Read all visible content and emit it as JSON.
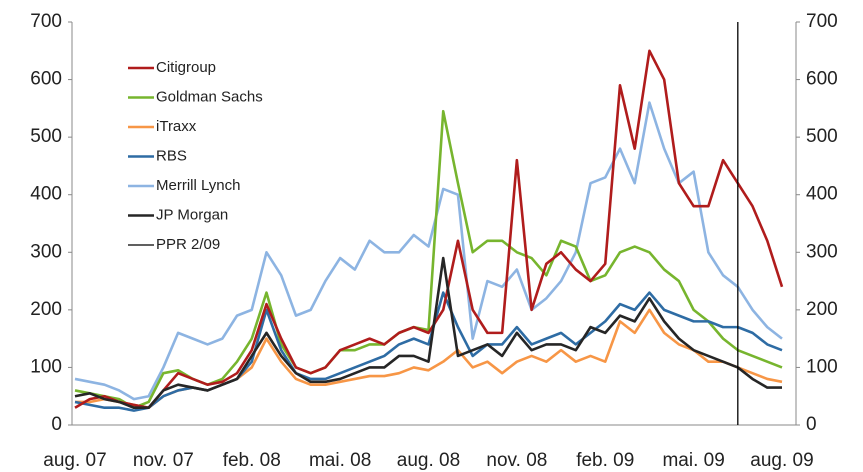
{
  "chart_data": {
    "type": "line",
    "categories": [
      "aug. 07",
      null,
      null,
      null,
      null,
      null,
      "nov. 07",
      null,
      null,
      null,
      null,
      null,
      "feb. 08",
      null,
      null,
      null,
      null,
      null,
      "mai. 08",
      null,
      null,
      null,
      null,
      null,
      "aug. 08",
      null,
      null,
      null,
      null,
      null,
      "nov. 08",
      null,
      null,
      null,
      null,
      null,
      "feb. 09",
      null,
      null,
      null,
      null,
      null,
      "mai. 09",
      null,
      null,
      null,
      null,
      null,
      "aug. 09"
    ],
    "series": [
      {
        "name": "Merrill Lynch",
        "color": "#8db4e2",
        "values": [
          80,
          75,
          70,
          60,
          45,
          50,
          100,
          160,
          150,
          140,
          150,
          190,
          200,
          300,
          260,
          190,
          200,
          250,
          290,
          270,
          320,
          300,
          300,
          330,
          310,
          410,
          400,
          150,
          250,
          240,
          270,
          200,
          220,
          250,
          300,
          420,
          430,
          480,
          420,
          560,
          480,
          420,
          440,
          300,
          260,
          240,
          200,
          170,
          150
        ]
      },
      {
        "name": "iTraxx",
        "color": "#f79646",
        "values": [
          40,
          40,
          45,
          40,
          35,
          30,
          50,
          60,
          65,
          60,
          70,
          80,
          100,
          150,
          110,
          80,
          70,
          70,
          75,
          80,
          85,
          85,
          90,
          100,
          95,
          110,
          130,
          100,
          110,
          90,
          110,
          120,
          110,
          130,
          110,
          120,
          110,
          180,
          160,
          200,
          160,
          140,
          130,
          110,
          110,
          100,
          90,
          80,
          75
        ]
      },
      {
        "name": "Goldman Sachs",
        "color": "#77b52e",
        "values": [
          60,
          55,
          50,
          45,
          30,
          40,
          90,
          95,
          80,
          70,
          80,
          110,
          150,
          230,
          140,
          100,
          90,
          100,
          130,
          130,
          140,
          140,
          160,
          170,
          165,
          545,
          420,
          300,
          320,
          320,
          300,
          290,
          260,
          320,
          310,
          250,
          260,
          300,
          310,
          300,
          270,
          250,
          200,
          180,
          150,
          130,
          120,
          110,
          100
        ]
      },
      {
        "name": "RBS",
        "color": "#2e6ca4",
        "values": [
          40,
          35,
          30,
          30,
          25,
          30,
          50,
          60,
          65,
          60,
          70,
          80,
          110,
          200,
          130,
          90,
          80,
          80,
          90,
          100,
          110,
          120,
          140,
          150,
          140,
          230,
          170,
          120,
          140,
          140,
          170,
          140,
          150,
          160,
          140,
          160,
          180,
          210,
          200,
          230,
          200,
          190,
          180,
          180,
          170,
          170,
          160,
          140,
          130
        ]
      },
      {
        "name": "Citigroup",
        "color": "#b01c1c",
        "values": [
          30,
          45,
          50,
          40,
          35,
          30,
          60,
          90,
          80,
          70,
          75,
          90,
          130,
          210,
          150,
          100,
          90,
          100,
          130,
          140,
          150,
          140,
          160,
          170,
          160,
          200,
          320,
          200,
          160,
          160,
          460,
          200,
          280,
          300,
          270,
          250,
          280,
          590,
          480,
          650,
          600,
          420,
          380,
          380,
          460,
          420,
          380,
          320,
          240
        ]
      },
      {
        "name": "JP Morgan",
        "color": "#262626",
        "values": [
          50,
          55,
          45,
          40,
          30,
          30,
          60,
          70,
          65,
          60,
          70,
          80,
          120,
          160,
          120,
          90,
          75,
          75,
          80,
          90,
          100,
          100,
          120,
          120,
          110,
          290,
          120,
          130,
          140,
          120,
          160,
          130,
          140,
          140,
          130,
          170,
          160,
          190,
          180,
          220,
          180,
          150,
          130,
          120,
          110,
          100,
          80,
          65,
          65
        ]
      }
    ],
    "legend_order": [
      4,
      2,
      1,
      3,
      0,
      5
    ],
    "vline": {
      "name": "PPR 2/09",
      "color": "#000000",
      "x": 45
    },
    "ylim": [
      0,
      700
    ],
    "yticks": [
      0,
      100,
      200,
      300,
      400,
      500,
      600,
      700
    ],
    "y2lim": [
      0,
      700
    ],
    "y2ticks": [
      0,
      100,
      200,
      300,
      400,
      500,
      600,
      700
    ],
    "legend": "upper left",
    "grid": false
  }
}
